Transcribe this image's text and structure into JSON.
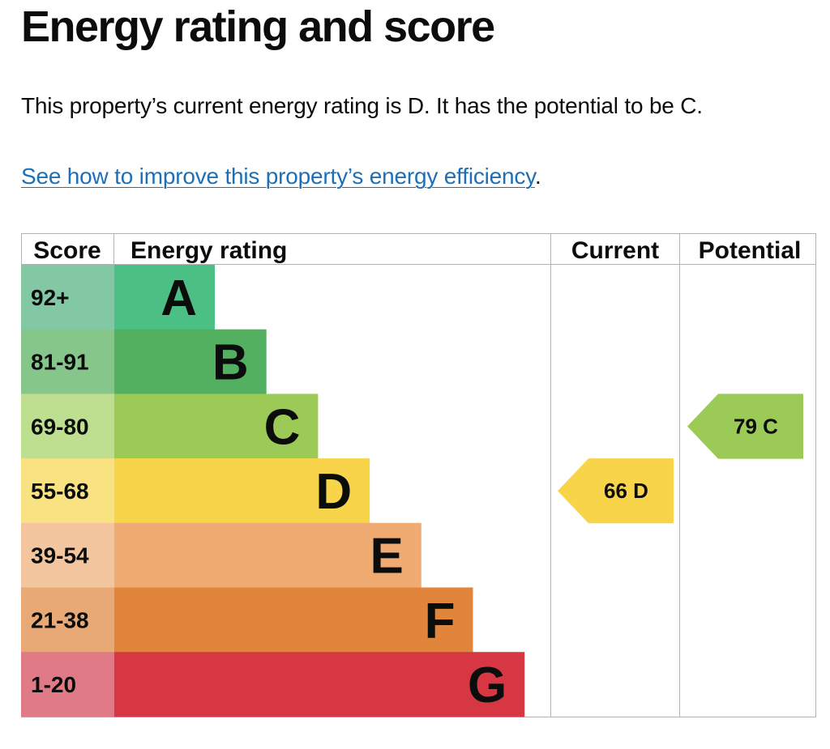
{
  "page": {
    "title": "Energy rating and score",
    "summary": "This property’s current energy rating is D. It has the potential to be C.",
    "improve_link": "See how to improve this property’s energy efficiency",
    "improve_suffix": "."
  },
  "chart_data": {
    "type": "bar",
    "columns": {
      "score": "Score",
      "rating": "Energy rating",
      "current": "Current",
      "potential": "Potential"
    },
    "bands": [
      {
        "letter": "A",
        "range": "92+",
        "color": "#4cbf85",
        "score_bg": "#82c8a4"
      },
      {
        "letter": "B",
        "range": "81-91",
        "color": "#53b060",
        "score_bg": "#86c68b"
      },
      {
        "letter": "C",
        "range": "69-80",
        "color": "#9bcb56",
        "score_bg": "#bedf90"
      },
      {
        "letter": "D",
        "range": "55-68",
        "color": "#f7d44a",
        "score_bg": "#f9e281"
      },
      {
        "letter": "E",
        "range": "39-54",
        "color": "#efab72",
        "score_bg": "#f3c6a0"
      },
      {
        "letter": "F",
        "range": "21-38",
        "color": "#e2853c",
        "score_bg": "#e8a977"
      },
      {
        "letter": "G",
        "range": "1-20",
        "color": "#d63743",
        "score_bg": "#e07a86"
      }
    ],
    "current": {
      "score": 66,
      "band": "D",
      "label": "66  D"
    },
    "potential": {
      "score": 79,
      "band": "C",
      "label": "79  C"
    }
  }
}
